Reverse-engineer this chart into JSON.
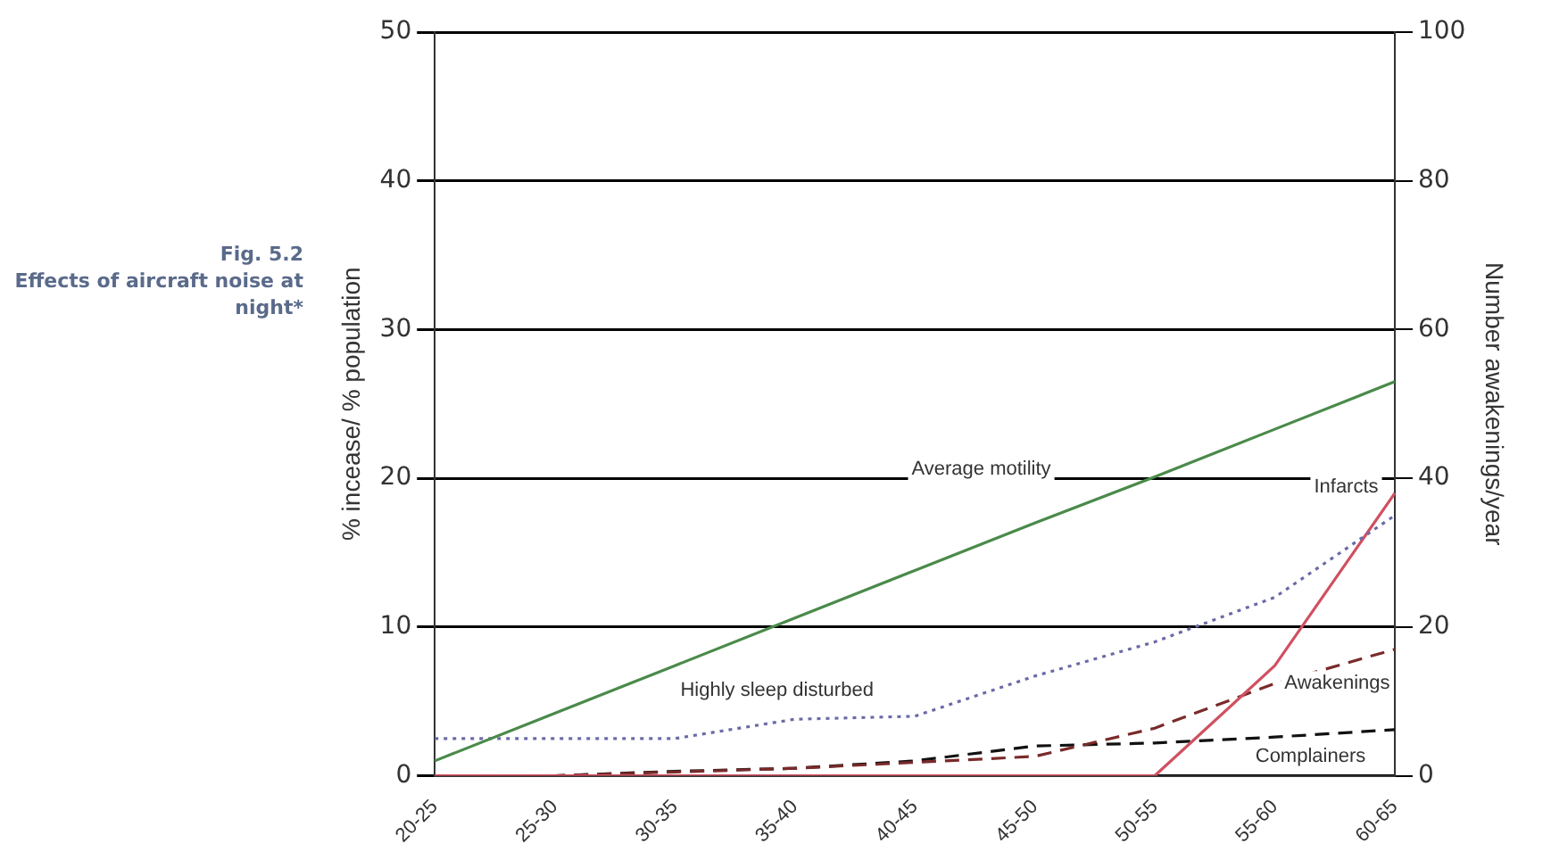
{
  "chart_data": {
    "type": "line",
    "title": "Fig. 5.2",
    "subtitle": "Effects of aircraft noise at night*",
    "ylabel": "% incease/ % population",
    "y2label": "Number awakenings/year",
    "categories": [
      "20-25",
      "25-30",
      "30-35",
      "35-40",
      "40-45",
      "45-50",
      "50-55",
      "55-60",
      "60-65"
    ],
    "ylim": [
      0,
      50
    ],
    "yticks": [
      0,
      10,
      20,
      30,
      40,
      50
    ],
    "y2lim": [
      0,
      100
    ],
    "y2ticks": [
      0,
      20,
      40,
      60,
      80,
      100
    ],
    "grid": "y",
    "legend": false,
    "marker": "none",
    "series": [
      {
        "name": "Average motility",
        "color": "#4a8a4a",
        "line_style": "solid",
        "values": [
          1,
          4.2,
          7.4,
          10.6,
          13.8,
          17,
          20.1,
          23.3,
          26.5
        ]
      },
      {
        "name": "Highly sleep disturbed",
        "color": "#6a6aa8",
        "line_style": "dotted",
        "values": [
          2.5,
          2.5,
          2.5,
          3.8,
          4,
          6.7,
          9,
          12,
          17.5
        ]
      },
      {
        "name": "Infarcts",
        "color": "#d05060",
        "line_style": "solid",
        "values": [
          0,
          0,
          0,
          0,
          0,
          0,
          0,
          7.4,
          19
        ]
      },
      {
        "name": "Awakenings",
        "color": "#7a2a2a",
        "line_style": "dashed",
        "axis": "y2",
        "values": [
          0,
          0,
          0.5,
          1,
          1.8,
          2.6,
          6.4,
          12.4,
          17
        ]
      },
      {
        "name": "Complainers",
        "color": "#111111",
        "line_style": "dashed",
        "values": [
          0,
          0,
          0.3,
          0.5,
          1,
          2,
          2.2,
          2.6,
          3.1
        ]
      }
    ]
  }
}
